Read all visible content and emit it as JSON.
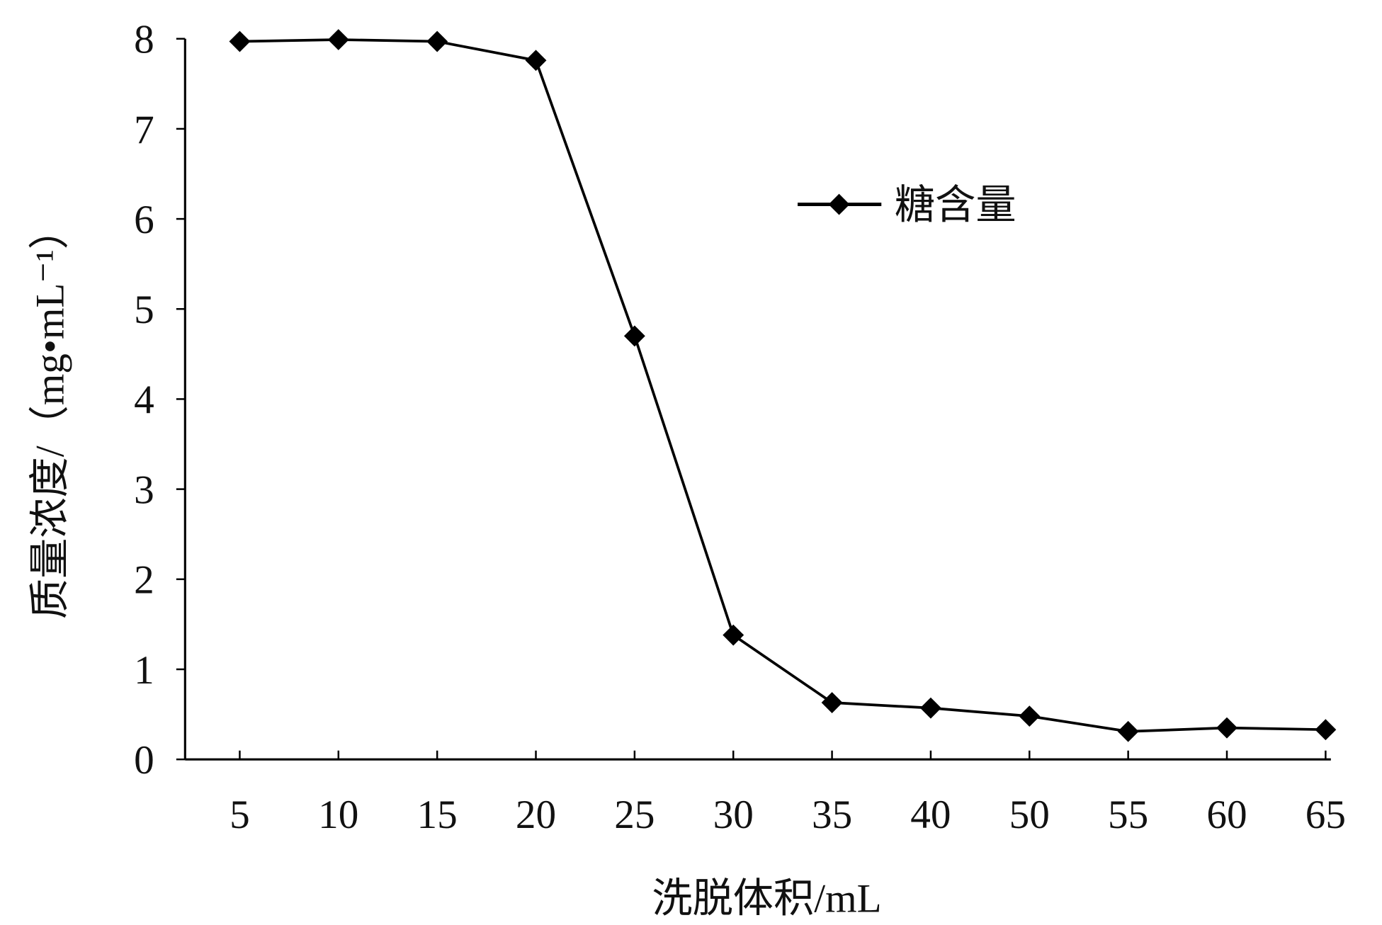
{
  "chart_data": {
    "type": "line",
    "x_label": "洗脱体积/mL",
    "y_label": "质量浓度/（mg•mL⁻¹）",
    "categories": [
      "5",
      "10",
      "15",
      "20",
      "25",
      "30",
      "35",
      "40",
      "50",
      "55",
      "60",
      "65"
    ],
    "series": [
      {
        "name": "糖含量",
        "color": "#000000",
        "values": [
          7.97,
          7.99,
          7.97,
          7.76,
          4.7,
          1.38,
          0.63,
          0.57,
          0.48,
          0.31,
          0.35,
          0.33
        ]
      }
    ],
    "ylim": [
      0,
      8
    ],
    "yticks": [
      0,
      1,
      2,
      3,
      4,
      5,
      6,
      7,
      8
    ],
    "grid": false,
    "legend": "upper right"
  }
}
